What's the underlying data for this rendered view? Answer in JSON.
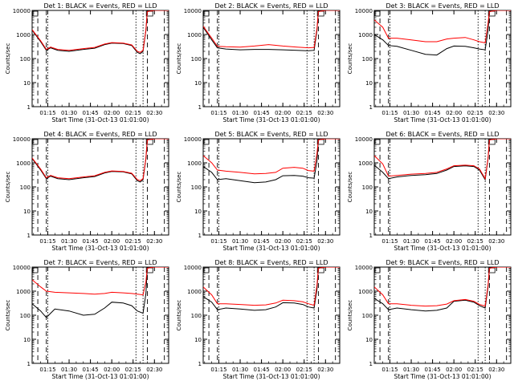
{
  "colors": {
    "events": "#000000",
    "lld": "#ff0000",
    "axis": "#000000",
    "background": "#ffffff"
  },
  "chart_data": {
    "type": "line",
    "layout": "3x3 grid",
    "y_scale": "log",
    "ylim": [
      1,
      10000
    ],
    "y_ticks": [
      1,
      10,
      100,
      1000,
      10000
    ],
    "y_tick_labels": [
      "1",
      "10",
      "100",
      "1000",
      "10000"
    ],
    "xlim": [
      "01:04",
      "02:40"
    ],
    "x_ticks": [
      "01:15",
      "01:30",
      "01:45",
      "02:00",
      "02:15",
      "02:30"
    ],
    "ylabel": "Counts/sec",
    "xlabel": "Start Time (31-Oct-13 01:01:00)",
    "dashed_lines": [
      "01:08",
      "01:14",
      "02:25",
      "02:37"
    ],
    "dotted_lines": [
      "01:15",
      "02:17",
      "02:22"
    ],
    "series_names": [
      "Events",
      "LLD"
    ],
    "panels": [
      {
        "title": "Det 1: BLACK = Events, RED = LLD",
        "series": [
          {
            "name": "Events",
            "x": [
              "01:04",
              "01:10",
              "01:14",
              "01:17",
              "01:22",
              "01:30",
              "01:40",
              "01:48",
              "01:55",
              "02:00",
              "02:08",
              "02:14",
              "02:18",
              "02:20",
              "02:22",
              "02:24",
              "02:25",
              "02:30",
              "02:38",
              "02:40"
            ],
            "values": [
              1500,
              500,
              220,
              280,
              220,
              200,
              240,
              270,
              380,
              440,
              420,
              350,
              180,
              160,
              200,
              1500,
              9000,
              10000,
              10000,
              10000
            ]
          },
          {
            "name": "LLD",
            "x": [
              "01:04",
              "01:10",
              "01:14",
              "01:17",
              "01:22",
              "01:30",
              "01:40",
              "01:48",
              "01:55",
              "02:00",
              "02:08",
              "02:14",
              "02:18",
              "02:20",
              "02:22",
              "02:24",
              "02:25",
              "02:30",
              "02:38",
              "02:40"
            ],
            "values": [
              1600,
              550,
              240,
              300,
              240,
              220,
              260,
              290,
              400,
              460,
              440,
              370,
              200,
              180,
              220,
              1600,
              9000,
              10000,
              10000,
              10000
            ]
          }
        ]
      },
      {
        "title": "Det 2: BLACK = Events, RED = LLD",
        "series": [
          {
            "name": "Events",
            "x": [
              "01:04",
              "01:10",
              "01:14",
              "01:20",
              "01:30",
              "01:40",
              "01:50",
              "02:00",
              "02:10",
              "02:18",
              "02:22",
              "02:24",
              "02:25",
              "02:30",
              "02:40"
            ],
            "values": [
              2000,
              600,
              280,
              250,
              230,
              240,
              240,
              230,
              220,
              210,
              220,
              1500,
              9000,
              10000,
              10000
            ]
          },
          {
            "name": "LLD",
            "x": [
              "01:04",
              "01:10",
              "01:14",
              "01:20",
              "01:30",
              "01:40",
              "01:50",
              "02:00",
              "02:10",
              "02:18",
              "02:22",
              "02:24",
              "02:25",
              "02:30",
              "02:40"
            ],
            "values": [
              2200,
              700,
              320,
              310,
              300,
              330,
              380,
              330,
              300,
              280,
              290,
              1800,
              9000,
              10000,
              10000
            ]
          }
        ]
      },
      {
        "title": "Det 3: BLACK = Events, RED = LLD",
        "series": [
          {
            "name": "Events",
            "x": [
              "01:04",
              "01:10",
              "01:14",
              "01:20",
              "01:30",
              "01:40",
              "01:48",
              "01:55",
              "02:00",
              "02:08",
              "02:14",
              "02:18",
              "02:22",
              "02:24",
              "02:25",
              "02:30",
              "02:40"
            ],
            "values": [
              1000,
              600,
              350,
              320,
              220,
              150,
              140,
              260,
              330,
              320,
              280,
              250,
              230,
              1500,
              9000,
              10000,
              10000
            ]
          },
          {
            "name": "LLD",
            "x": [
              "01:04",
              "01:10",
              "01:14",
              "01:20",
              "01:30",
              "01:40",
              "01:48",
              "01:55",
              "02:00",
              "02:08",
              "02:14",
              "02:18",
              "02:22",
              "02:24",
              "02:25",
              "02:30",
              "02:40"
            ],
            "values": [
              4000,
              2000,
              700,
              700,
              600,
              500,
              500,
              650,
              700,
              750,
              600,
              500,
              450,
              3000,
              9000,
              10000,
              10000
            ]
          }
        ]
      },
      {
        "title": "Det 4: BLACK = Events, RED = LLD",
        "series": [
          {
            "name": "Events",
            "x": [
              "01:04",
              "01:10",
              "01:14",
              "01:17",
              "01:22",
              "01:30",
              "01:40",
              "01:48",
              "01:55",
              "02:00",
              "02:08",
              "02:14",
              "02:18",
              "02:20",
              "02:22",
              "02:24",
              "02:25",
              "02:30",
              "02:40"
            ],
            "values": [
              1500,
              500,
              220,
              280,
              220,
              200,
              240,
              270,
              380,
              440,
              420,
              350,
              180,
              160,
              200,
              1500,
              9000,
              10000,
              10000
            ]
          },
          {
            "name": "LLD",
            "x": [
              "01:04",
              "01:10",
              "01:14",
              "01:17",
              "01:22",
              "01:30",
              "01:40",
              "01:48",
              "01:55",
              "02:00",
              "02:08",
              "02:14",
              "02:18",
              "02:20",
              "02:22",
              "02:24",
              "02:25",
              "02:30",
              "02:40"
            ],
            "values": [
              1600,
              550,
              240,
              300,
              240,
              220,
              260,
              290,
              400,
              460,
              440,
              370,
              200,
              180,
              220,
              1600,
              9000,
              10000,
              10000
            ]
          }
        ]
      },
      {
        "title": "Det 5: BLACK = Events, RED = LLD",
        "series": [
          {
            "name": "Events",
            "x": [
              "01:04",
              "01:10",
              "01:14",
              "01:20",
              "01:30",
              "01:40",
              "01:48",
              "01:55",
              "02:00",
              "02:08",
              "02:14",
              "02:18",
              "02:22",
              "02:24",
              "02:25",
              "02:30",
              "02:40"
            ],
            "values": [
              700,
              400,
              200,
              220,
              180,
              150,
              160,
              200,
              290,
              300,
              280,
              240,
              230,
              1200,
              9000,
              10000,
              10000
            ]
          },
          {
            "name": "LLD",
            "x": [
              "01:04",
              "01:10",
              "01:14",
              "01:20",
              "01:30",
              "01:40",
              "01:48",
              "01:55",
              "02:00",
              "02:08",
              "02:14",
              "02:18",
              "02:22",
              "02:24",
              "02:25",
              "02:30",
              "02:40"
            ],
            "values": [
              2000,
              1000,
              500,
              450,
              400,
              350,
              360,
              400,
              600,
              650,
              600,
              480,
              450,
              2500,
              9000,
              10000,
              10000
            ]
          }
        ]
      },
      {
        "title": "Det 6: BLACK = Events, RED = LLD",
        "series": [
          {
            "name": "Events",
            "x": [
              "01:04",
              "01:10",
              "01:14",
              "01:20",
              "01:30",
              "01:40",
              "01:48",
              "01:55",
              "02:00",
              "02:08",
              "02:14",
              "02:18",
              "02:22",
              "02:24",
              "02:25",
              "02:30",
              "02:40"
            ],
            "values": [
              800,
              400,
              220,
              260,
              300,
              320,
              360,
              500,
              700,
              750,
              700,
              500,
              200,
              1500,
              9000,
              10000,
              10000
            ]
          },
          {
            "name": "LLD",
            "x": [
              "01:04",
              "01:10",
              "01:14",
              "01:20",
              "01:30",
              "01:40",
              "01:48",
              "01:55",
              "02:00",
              "02:08",
              "02:14",
              "02:18",
              "02:22",
              "02:24",
              "02:25",
              "02:30",
              "02:40"
            ],
            "values": [
              2000,
              900,
              280,
              300,
              340,
              360,
              400,
              560,
              760,
              800,
              760,
              560,
              220,
              1600,
              9000,
              10000,
              10000
            ]
          }
        ]
      },
      {
        "title": "Det 7: BLACK = Events, RED = LLD",
        "series": [
          {
            "name": "Events",
            "x": [
              "01:04",
              "01:10",
              "01:14",
              "01:20",
              "01:30",
              "01:40",
              "01:48",
              "01:55",
              "02:00",
              "02:08",
              "02:14",
              "02:18",
              "02:22",
              "02:24",
              "02:25",
              "02:30",
              "02:40"
            ],
            "values": [
              300,
              150,
              80,
              180,
              150,
              100,
              110,
              200,
              350,
              320,
              250,
              150,
              120,
              800,
              9000,
              10000,
              10000
            ]
          },
          {
            "name": "LLD",
            "x": [
              "01:04",
              "01:10",
              "01:14",
              "01:20",
              "01:30",
              "01:40",
              "01:48",
              "01:55",
              "02:00",
              "02:08",
              "02:14",
              "02:18",
              "02:22",
              "02:24",
              "02:25",
              "02:30",
              "02:40"
            ],
            "values": [
              3000,
              1500,
              1000,
              900,
              850,
              800,
              750,
              800,
              900,
              850,
              800,
              750,
              700,
              2500,
              9000,
              10000,
              10000
            ]
          }
        ]
      },
      {
        "title": "Det 8: BLACK = Events, RED = LLD",
        "series": [
          {
            "name": "Events",
            "x": [
              "01:04",
              "01:10",
              "01:14",
              "01:20",
              "01:30",
              "01:40",
              "01:48",
              "01:55",
              "02:00",
              "02:08",
              "02:14",
              "02:18",
              "02:22",
              "02:24",
              "02:25",
              "02:30",
              "02:40"
            ],
            "values": [
              600,
              350,
              170,
              200,
              180,
              160,
              170,
              220,
              330,
              320,
              280,
              220,
              200,
              1200,
              9000,
              10000,
              10000
            ]
          },
          {
            "name": "LLD",
            "x": [
              "01:04",
              "01:10",
              "01:14",
              "01:20",
              "01:30",
              "01:40",
              "01:48",
              "01:55",
              "02:00",
              "02:08",
              "02:14",
              "02:18",
              "02:22",
              "02:24",
              "02:25",
              "02:30",
              "02:40"
            ],
            "values": [
              1500,
              700,
              300,
              300,
              280,
              260,
              270,
              320,
              420,
              400,
              360,
              300,
              260,
              1800,
              9000,
              10000,
              10000
            ]
          }
        ]
      },
      {
        "title": "Det 9: BLACK = Events, RED = LLD",
        "series": [
          {
            "name": "Events",
            "x": [
              "01:04",
              "01:10",
              "01:14",
              "01:20",
              "01:30",
              "01:40",
              "01:48",
              "01:55",
              "02:00",
              "02:08",
              "02:14",
              "02:18",
              "02:22",
              "02:24",
              "02:25",
              "02:30",
              "02:40"
            ],
            "values": [
              500,
              300,
              170,
              200,
              170,
              150,
              160,
              200,
              380,
              420,
              350,
              250,
              200,
              1500,
              9000,
              10000,
              10000
            ]
          },
          {
            "name": "LLD",
            "x": [
              "01:04",
              "01:10",
              "01:14",
              "01:20",
              "01:30",
              "01:40",
              "01:48",
              "01:55",
              "02:00",
              "02:08",
              "02:14",
              "02:18",
              "02:22",
              "02:24",
              "02:25",
              "02:30",
              "02:40"
            ],
            "values": [
              1500,
              700,
              300,
              300,
              260,
              240,
              250,
              290,
              400,
              450,
              380,
              280,
              240,
              1800,
              9000,
              10000,
              10000
            ]
          }
        ]
      }
    ]
  }
}
